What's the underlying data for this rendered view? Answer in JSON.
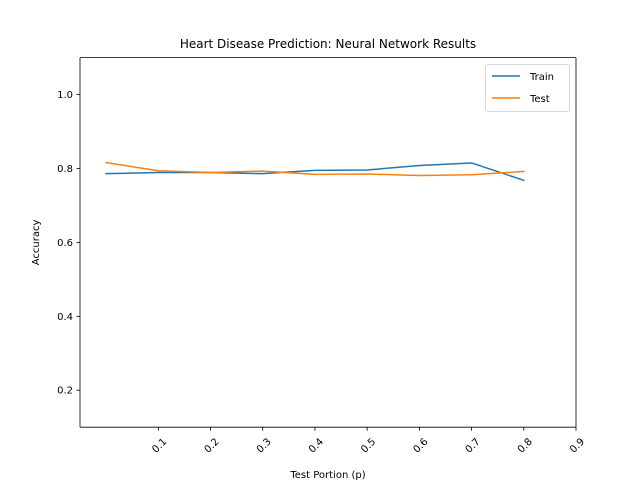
{
  "chart_data": {
    "type": "line",
    "title": "Heart Disease Prediction: Neural Network Results",
    "xlabel": "Test Portion (p)",
    "ylabel": "Accuracy",
    "xlim": [
      -0.05,
      0.9
    ],
    "ylim": [
      0.1,
      1.1
    ],
    "xticks": [
      0.1,
      0.2,
      0.3,
      0.4,
      0.5,
      0.6,
      0.7,
      0.8,
      0.9
    ],
    "xtick_labels": [
      "0.1",
      "0.2",
      "0.3",
      "0.4",
      "0.5",
      "0.6",
      "0.7",
      "0.8",
      "0.9"
    ],
    "yticks": [
      0.2,
      0.4,
      0.6,
      0.8,
      1.0
    ],
    "ytick_labels": [
      "0.2",
      "0.4",
      "0.6",
      "0.8",
      "1.0"
    ],
    "grid": false,
    "legend_position": "top-right",
    "x": [
      0.0,
      0.1,
      0.2,
      0.3,
      0.4,
      0.5,
      0.6,
      0.7,
      0.8
    ],
    "series": [
      {
        "name": "Train",
        "color": "#1f77b4",
        "values": [
          0.786,
          0.789,
          0.789,
          0.786,
          0.795,
          0.796,
          0.808,
          0.815,
          0.768
        ]
      },
      {
        "name": "Test",
        "color": "#ff7f0e",
        "values": [
          0.816,
          0.794,
          0.789,
          0.793,
          0.784,
          0.785,
          0.781,
          0.783,
          0.792
        ]
      }
    ]
  }
}
